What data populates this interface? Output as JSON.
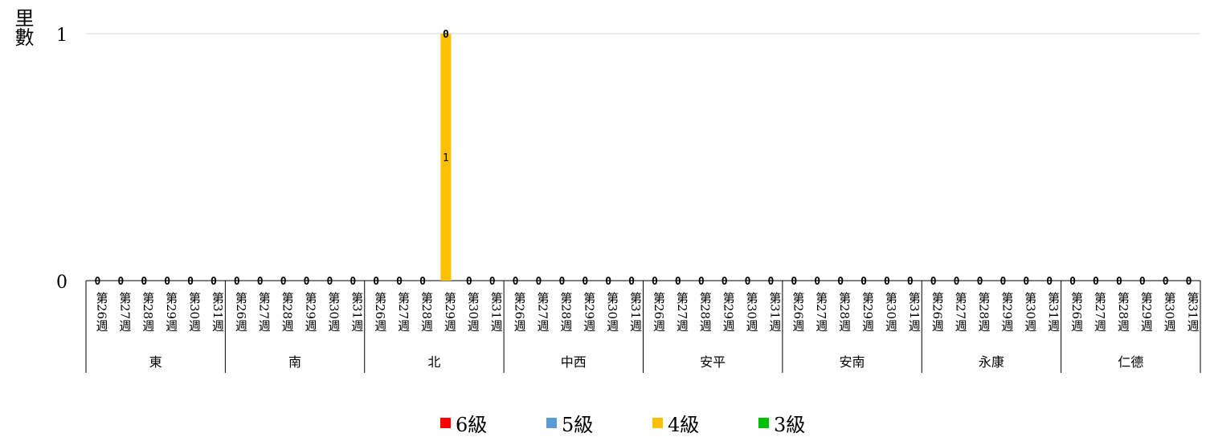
{
  "chart_data": {
    "type": "bar",
    "ylabel": "里數",
    "ylim": [
      0,
      1
    ],
    "yticks": [
      "0",
      "1"
    ],
    "groups": [
      "東",
      "南",
      "北",
      "中西",
      "安平",
      "安南",
      "永康",
      "仁德"
    ],
    "weeks": [
      "第26週",
      "第27週",
      "第28週",
      "第29週",
      "第30週",
      "第31週"
    ],
    "series": [
      {
        "name": "6級",
        "color": "#ff0000"
      },
      {
        "name": "5級",
        "color": "#5b9bd5"
      },
      {
        "name": "4級",
        "color": "#ffc000"
      },
      {
        "name": "3級",
        "color": "#00c000"
      }
    ],
    "values": [
      {
        "group": "東",
        "week": "第26週",
        "6級": 0,
        "5級": 0,
        "4級": 0,
        "3級": 0
      },
      {
        "group": "東",
        "week": "第27週",
        "6級": 0,
        "5級": 0,
        "4級": 0,
        "3級": 0
      },
      {
        "group": "東",
        "week": "第28週",
        "6級": 0,
        "5級": 0,
        "4級": 0,
        "3級": 0
      },
      {
        "group": "東",
        "week": "第29週",
        "6級": 0,
        "5級": 0,
        "4級": 0,
        "3級": 0
      },
      {
        "group": "東",
        "week": "第30週",
        "6級": 0,
        "5級": 0,
        "4級": 0,
        "3級": 0
      },
      {
        "group": "東",
        "week": "第31週",
        "6級": 0,
        "5級": 0,
        "4級": 0,
        "3級": 0
      },
      {
        "group": "南",
        "week": "第26週",
        "6級": 0,
        "5級": 0,
        "4級": 0,
        "3級": 0
      },
      {
        "group": "南",
        "week": "第27週",
        "6級": 0,
        "5級": 0,
        "4級": 0,
        "3級": 0
      },
      {
        "group": "南",
        "week": "第28週",
        "6級": 0,
        "5級": 0,
        "4級": 0,
        "3級": 0
      },
      {
        "group": "南",
        "week": "第29週",
        "6級": 0,
        "5級": 0,
        "4級": 0,
        "3級": 0
      },
      {
        "group": "南",
        "week": "第30週",
        "6級": 0,
        "5級": 0,
        "4級": 0,
        "3級": 0
      },
      {
        "group": "南",
        "week": "第31週",
        "6級": 0,
        "5級": 0,
        "4級": 0,
        "3級": 0
      },
      {
        "group": "北",
        "week": "第26週",
        "6級": 0,
        "5級": 0,
        "4級": 0,
        "3級": 0
      },
      {
        "group": "北",
        "week": "第27週",
        "6級": 0,
        "5級": 0,
        "4級": 0,
        "3級": 0
      },
      {
        "group": "北",
        "week": "第28週",
        "6級": 0,
        "5級": 0,
        "4級": 0,
        "3級": 0
      },
      {
        "group": "北",
        "week": "第29週",
        "6級": 0,
        "5級": 0,
        "4級": 1,
        "3級": 0
      },
      {
        "group": "北",
        "week": "第30週",
        "6級": 0,
        "5級": 0,
        "4級": 0,
        "3級": 0
      },
      {
        "group": "北",
        "week": "第31週",
        "6級": 0,
        "5級": 0,
        "4級": 0,
        "3級": 0
      },
      {
        "group": "中西",
        "week": "第26週",
        "6級": 0,
        "5級": 0,
        "4級": 0,
        "3級": 0
      },
      {
        "group": "中西",
        "week": "第27週",
        "6級": 0,
        "5級": 0,
        "4級": 0,
        "3級": 0
      },
      {
        "group": "中西",
        "week": "第28週",
        "6級": 0,
        "5級": 0,
        "4級": 0,
        "3級": 0
      },
      {
        "group": "中西",
        "week": "第29週",
        "6級": 0,
        "5級": 0,
        "4級": 0,
        "3級": 0
      },
      {
        "group": "中西",
        "week": "第30週",
        "6級": 0,
        "5級": 0,
        "4級": 0,
        "3級": 0
      },
      {
        "group": "中西",
        "week": "第31週",
        "6級": 0,
        "5級": 0,
        "4級": 0,
        "3級": 0
      },
      {
        "group": "安平",
        "week": "第26週",
        "6級": 0,
        "5級": 0,
        "4級": 0,
        "3級": 0
      },
      {
        "group": "安平",
        "week": "第27週",
        "6級": 0,
        "5級": 0,
        "4級": 0,
        "3級": 0
      },
      {
        "group": "安平",
        "week": "第28週",
        "6級": 0,
        "5級": 0,
        "4級": 0,
        "3級": 0
      },
      {
        "group": "安平",
        "week": "第29週",
        "6級": 0,
        "5級": 0,
        "4級": 0,
        "3級": 0
      },
      {
        "group": "安平",
        "week": "第30週",
        "6級": 0,
        "5級": 0,
        "4級": 0,
        "3級": 0
      },
      {
        "group": "安平",
        "week": "第31週",
        "6級": 0,
        "5級": 0,
        "4級": 0,
        "3級": 0
      },
      {
        "group": "安南",
        "week": "第26週",
        "6級": 0,
        "5級": 0,
        "4級": 0,
        "3級": 0
      },
      {
        "group": "安南",
        "week": "第27週",
        "6級": 0,
        "5級": 0,
        "4級": 0,
        "3級": 0
      },
      {
        "group": "安南",
        "week": "第28週",
        "6級": 0,
        "5級": 0,
        "4級": 0,
        "3級": 0
      },
      {
        "group": "安南",
        "week": "第29週",
        "6級": 0,
        "5級": 0,
        "4級": 0,
        "3級": 0
      },
      {
        "group": "安南",
        "week": "第30週",
        "6級": 0,
        "5級": 0,
        "4級": 0,
        "3級": 0
      },
      {
        "group": "安南",
        "week": "第31週",
        "6級": 0,
        "5級": 0,
        "4級": 0,
        "3級": 0
      },
      {
        "group": "永康",
        "week": "第26週",
        "6級": 0,
        "5級": 0,
        "4級": 0,
        "3級": 0
      },
      {
        "group": "永康",
        "week": "第27週",
        "6級": 0,
        "5級": 0,
        "4級": 0,
        "3級": 0
      },
      {
        "group": "永康",
        "week": "第28週",
        "6級": 0,
        "5級": 0,
        "4級": 0,
        "3級": 0
      },
      {
        "group": "永康",
        "week": "第29週",
        "6級": 0,
        "5級": 0,
        "4級": 0,
        "3級": 0
      },
      {
        "group": "永康",
        "week": "第30週",
        "6級": 0,
        "5級": 0,
        "4級": 0,
        "3級": 0
      },
      {
        "group": "永康",
        "week": "第31週",
        "6級": 0,
        "5級": 0,
        "4級": 0,
        "3級": 0
      },
      {
        "group": "仁德",
        "week": "第26週",
        "6級": 0,
        "5級": 0,
        "4級": 0,
        "3級": 0
      },
      {
        "group": "仁德",
        "week": "第27週",
        "6級": 0,
        "5級": 0,
        "4級": 0,
        "3級": 0
      },
      {
        "group": "仁德",
        "week": "第28週",
        "6級": 0,
        "5級": 0,
        "4級": 0,
        "3級": 0
      },
      {
        "group": "仁德",
        "week": "第29週",
        "6級": 0,
        "5級": 0,
        "4級": 0,
        "3級": 0
      },
      {
        "group": "仁德",
        "week": "第30週",
        "6級": 0,
        "5級": 0,
        "4級": 0,
        "3級": 0
      },
      {
        "group": "仁德",
        "week": "第31週",
        "6級": 0,
        "5級": 0,
        "4級": 0,
        "3級": 0
      }
    ],
    "grid": true,
    "legend_position": "bottom"
  }
}
